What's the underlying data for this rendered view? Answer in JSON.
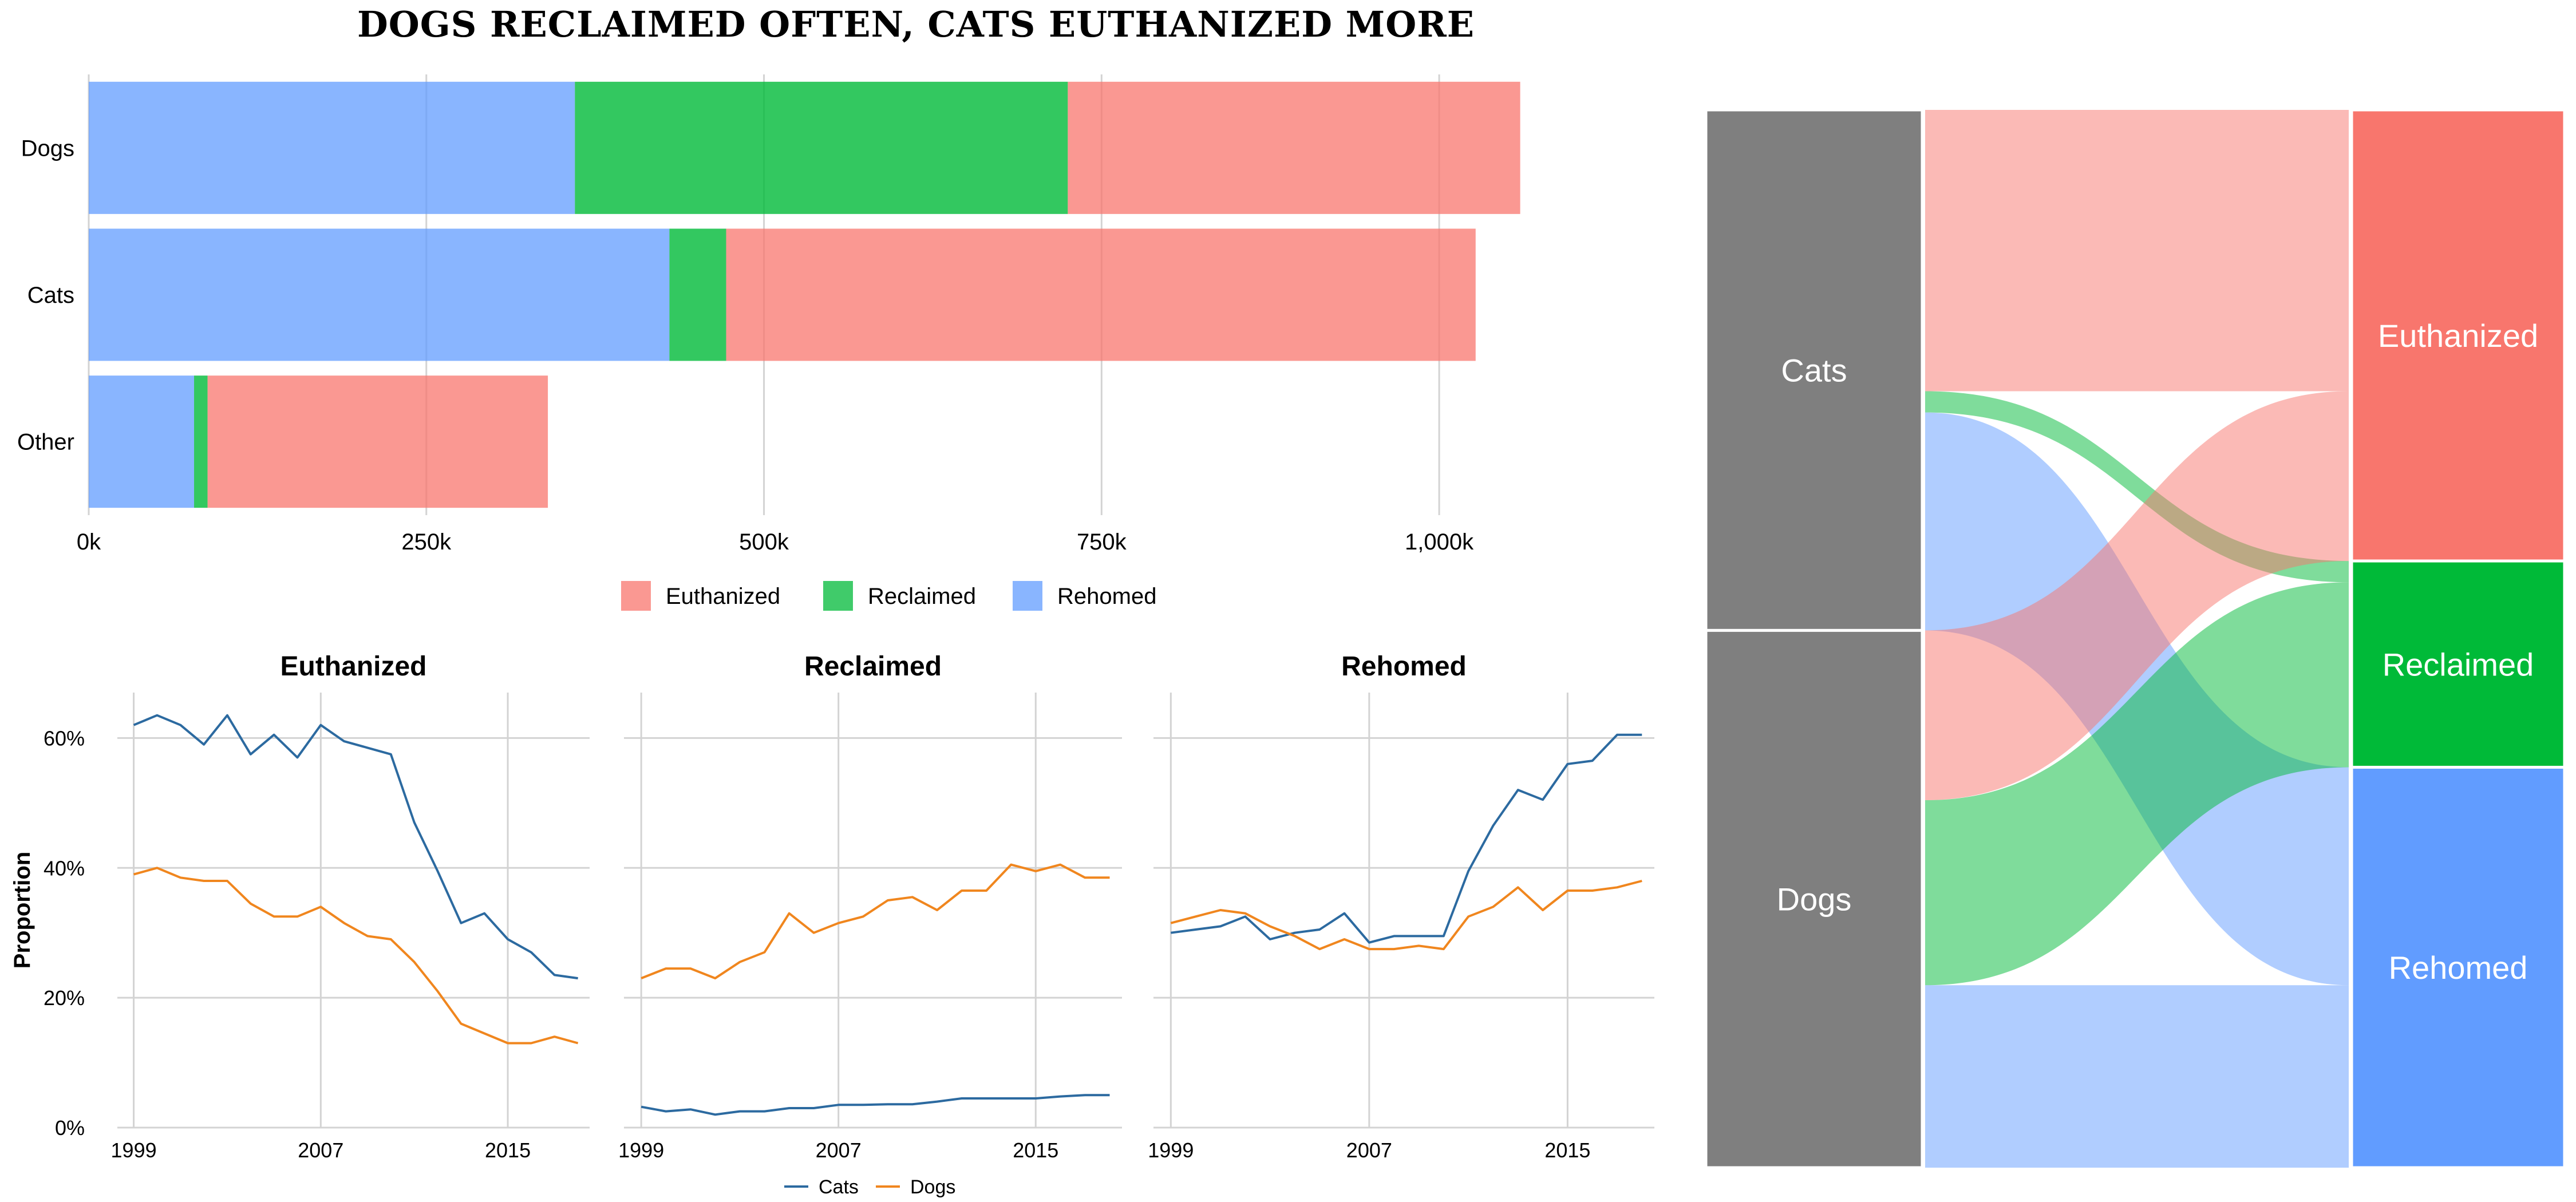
{
  "title": "DOGS RECLAIMED OFTEN, CATS EUTHANIZED MORE",
  "colors": {
    "euthanized": "#F8766D",
    "reclaimed": "#00BA38",
    "rehomed": "#619CFF",
    "cats_line": "#2C6AA0",
    "dogs_line": "#F0861E",
    "grid": "#D3D3D3",
    "node_gray": "#7F7F7F"
  },
  "chart_data": [
    {
      "type": "bar",
      "orientation": "horizontal",
      "stacked": true,
      "categories": [
        "Dogs",
        "Cats",
        "Other"
      ],
      "series": [
        {
          "name": "Rehomed",
          "values": [
            360000,
            430000,
            78000
          ]
        },
        {
          "name": "Reclaimed",
          "values": [
            365000,
            42000,
            10000
          ]
        },
        {
          "name": "Euthanized",
          "values": [
            335000,
            555000,
            252000
          ]
        }
      ],
      "xlim": [
        0,
        1100000
      ],
      "xticks": [
        0,
        250000,
        500000,
        750000,
        1000000
      ],
      "xtick_labels": [
        "0k",
        "250k",
        "500k",
        "750k",
        "1,000k"
      ],
      "legend": [
        "Euthanized",
        "Reclaimed",
        "Rehomed"
      ],
      "legend_position": "bottom",
      "grid": true
    },
    {
      "type": "line",
      "facets": [
        "Euthanized",
        "Reclaimed",
        "Rehomed"
      ],
      "ylabel": "Proportion",
      "ylim": [
        0,
        0.67
      ],
      "yticks": [
        0,
        0.2,
        0.4,
        0.6
      ],
      "ytick_labels": [
        "0%",
        "20%",
        "40%",
        "60%"
      ],
      "xlim": [
        1998.3,
        2018.5
      ],
      "xticks": [
        1999,
        2007,
        2015
      ],
      "xtick_labels": [
        "1999",
        "2007",
        "2015"
      ],
      "x": [
        1999,
        2000,
        2001,
        2002,
        2003,
        2004,
        2005,
        2006,
        2007,
        2008,
        2009,
        2010,
        2011,
        2012,
        2013,
        2014,
        2015,
        2016,
        2017,
        2018
      ],
      "series": [
        {
          "name": "Cats",
          "facet": "Euthanized",
          "values": [
            0.62,
            0.635,
            0.62,
            0.59,
            0.635,
            0.575,
            0.605,
            0.57,
            0.62,
            0.595,
            0.585,
            0.575,
            0.47,
            0.395,
            0.315,
            0.33,
            0.29,
            0.27,
            0.235,
            0.23
          ]
        },
        {
          "name": "Dogs",
          "facet": "Euthanized",
          "values": [
            0.39,
            0.4,
            0.385,
            0.38,
            0.38,
            0.345,
            0.325,
            0.325,
            0.34,
            0.315,
            0.295,
            0.29,
            0.255,
            0.21,
            0.16,
            0.145,
            0.13,
            0.13,
            0.14,
            0.13
          ]
        },
        {
          "name": "Cats",
          "facet": "Reclaimed",
          "values": [
            0.032,
            0.025,
            0.028,
            0.02,
            0.025,
            0.025,
            0.03,
            0.03,
            0.035,
            0.035,
            0.036,
            0.036,
            0.04,
            0.045,
            0.045,
            0.045,
            0.045,
            0.048,
            0.05,
            0.05
          ]
        },
        {
          "name": "Dogs",
          "facet": "Reclaimed",
          "values": [
            0.23,
            0.245,
            0.245,
            0.23,
            0.255,
            0.27,
            0.33,
            0.3,
            0.315,
            0.325,
            0.35,
            0.355,
            0.335,
            0.365,
            0.365,
            0.405,
            0.395,
            0.405,
            0.385,
            0.385
          ]
        },
        {
          "name": "Cats",
          "facet": "Rehomed",
          "values": [
            0.3,
            0.305,
            0.31,
            0.325,
            0.29,
            0.3,
            0.305,
            0.33,
            0.285,
            0.295,
            0.295,
            0.295,
            0.395,
            0.465,
            0.52,
            0.505,
            0.56,
            0.565,
            0.605,
            0.605
          ]
        },
        {
          "name": "Dogs",
          "facet": "Rehomed",
          "values": [
            0.315,
            0.325,
            0.335,
            0.33,
            0.31,
            0.295,
            0.275,
            0.29,
            0.275,
            0.275,
            0.28,
            0.275,
            0.325,
            0.34,
            0.37,
            0.335,
            0.365,
            0.365,
            0.37,
            0.38
          ]
        }
      ],
      "legend": [
        "Cats",
        "Dogs"
      ],
      "legend_position": "bottom",
      "grid": true
    },
    {
      "type": "sankey",
      "sources": [
        "Cats",
        "Dogs"
      ],
      "targets": [
        "Euthanized",
        "Reclaimed",
        "Rehomed"
      ],
      "flows": [
        {
          "source": "Cats",
          "target": "Euthanized",
          "value": 555000
        },
        {
          "source": "Cats",
          "target": "Reclaimed",
          "value": 42000
        },
        {
          "source": "Cats",
          "target": "Rehomed",
          "value": 430000
        },
        {
          "source": "Dogs",
          "target": "Euthanized",
          "value": 335000
        },
        {
          "source": "Dogs",
          "target": "Reclaimed",
          "value": 365000
        },
        {
          "source": "Dogs",
          "target": "Rehomed",
          "value": 360000
        }
      ]
    }
  ]
}
